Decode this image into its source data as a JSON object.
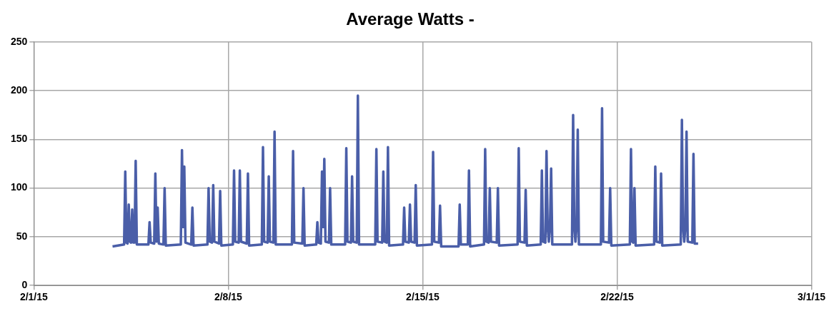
{
  "chart_data": {
    "type": "line",
    "title": "Average Watts -",
    "x": [
      "--02-03T20:00",
      "--02-04T06:00",
      "--02-04T07:00",
      "--02-04T08:00",
      "--02-04T09:00",
      "--02-04T10:00",
      "--02-04T11:00",
      "--02-04T12:00",
      "--02-04T13:00",
      "--02-04T14:00",
      "--02-04T15:00",
      "--02-04T16:00",
      "--02-04T17:00",
      "--02-05T03:00",
      "--02-05T04:00",
      "--02-05T05:00",
      "--02-05T08:00",
      "--02-05T09:00",
      "--02-05T10:00",
      "--02-05T11:00",
      "--02-05T12:00",
      "--02-05T16:00",
      "--02-05T17:00",
      "--02-05T18:00",
      "--02-06T07:00",
      "--02-06T08:00",
      "--02-06T09:00",
      "--02-06T10:00",
      "--02-06T11:00",
      "--02-06T16:00",
      "--02-06T17:00",
      "--02-06T18:00",
      "--02-07T06:00",
      "--02-07T07:00",
      "--02-07T08:00",
      "--02-07T10:00",
      "--02-07T11:00",
      "--02-07T12:00",
      "--02-07T16:00",
      "--02-07T17:00",
      "--02-07T18:00",
      "--02-08T04:00",
      "--02-08T05:00",
      "--02-08T06:00",
      "--02-08T09:00",
      "--02-08T10:00",
      "--02-08T11:00",
      "--02-08T16:00",
      "--02-08T17:00",
      "--02-08T18:00",
      "--02-09T05:00",
      "--02-09T06:00",
      "--02-09T07:00",
      "--02-09T10:00",
      "--02-09T11:00",
      "--02-09T12:00",
      "--02-09T15:00",
      "--02-09T16:00",
      "--02-09T17:00",
      "--02-10T07:00",
      "--02-10T08:00",
      "--02-10T09:00",
      "--02-10T16:00",
      "--02-10T17:00",
      "--02-10T18:00",
      "--02-11T04:00",
      "--02-11T05:00",
      "--02-11T06:00",
      "--02-11T08:00",
      "--02-11T09:00",
      "--02-11T10:00",
      "--02-11T11:00",
      "--02-11T12:00",
      "--02-11T15:00",
      "--02-11T16:00",
      "--02-11T17:00",
      "--02-12T05:00",
      "--02-12T06:00",
      "--02-12T07:00",
      "--02-12T10:00",
      "--02-12T11:00",
      "--02-12T12:00",
      "--02-12T15:00",
      "--02-12T16:00",
      "--02-12T17:00",
      "--02-13T07:00",
      "--02-13T08:00",
      "--02-13T09:00",
      "--02-13T13:00",
      "--02-13T14:00",
      "--02-13T15:00",
      "--02-13T17:00",
      "--02-13T18:00",
      "--02-13T19:00",
      "--02-14T07:00",
      "--02-14T08:00",
      "--02-14T09:00",
      "--02-14T12:00",
      "--02-14T13:00",
      "--02-14T14:00",
      "--02-14T17:00",
      "--02-14T18:00",
      "--02-14T19:00",
      "--02-15T08:00",
      "--02-15T09:00",
      "--02-15T10:00",
      "--02-15T14:00",
      "--02-15T15:00",
      "--02-15T16:00",
      "--02-16T07:00",
      "--02-16T08:00",
      "--02-16T09:00",
      "--02-16T15:00",
      "--02-16T16:00",
      "--02-16T17:00",
      "--02-17T05:00",
      "--02-17T06:00",
      "--02-17T07:00",
      "--02-17T09:00",
      "--02-17T10:00",
      "--02-17T11:00",
      "--02-17T16:00",
      "--02-17T17:00",
      "--02-17T18:00",
      "--02-18T10:00",
      "--02-18T11:00",
      "--02-18T12:00",
      "--02-18T16:00",
      "--02-18T17:00",
      "--02-18T18:00",
      "--02-19T06:00",
      "--02-19T07:00",
      "--02-19T08:00",
      "--02-19T10:00",
      "--02-19T11:00",
      "--02-19T12:00",
      "--02-19T13:00",
      "--02-19T14:00",
      "--02-19T15:00",
      "--02-19T16:00",
      "--02-20T09:00",
      "--02-20T10:00",
      "--02-20T11:00",
      "--02-20T12:00",
      "--02-20T13:00",
      "--02-20T14:00",
      "--02-20T15:00",
      "--02-21T10:00",
      "--02-21T11:00",
      "--02-21T12:00",
      "--02-21T17:00",
      "--02-21T18:00",
      "--02-21T19:00",
      "--02-22T11:00",
      "--02-22T12:00",
      "--02-22T13:00",
      "--02-22T14:00",
      "--02-22T15:00",
      "--02-22T16:00",
      "--02-23T08:00",
      "--02-23T09:00",
      "--02-23T10:00",
      "--02-23T13:00",
      "--02-23T14:00",
      "--02-23T15:00",
      "--02-24T07:00",
      "--02-24T08:00",
      "--02-24T09:00",
      "--02-24T10:00",
      "--02-24T11:00",
      "--02-24T12:00",
      "--02-24T13:00",
      "--02-24T17:00",
      "--02-24T18:00",
      "--02-24T19:00",
      "--02-24T22:00"
    ],
    "series": [
      {
        "color": "#4a5ea8",
        "values": [
          40,
          42,
          117,
          44,
          43,
          83,
          45,
          44,
          78,
          44,
          44,
          128,
          42,
          42,
          65,
          44,
          43,
          115,
          45,
          80,
          43,
          42,
          100,
          41,
          42,
          139,
          60,
          122,
          44,
          42,
          80,
          41,
          42,
          100,
          45,
          44,
          103,
          45,
          43,
          97,
          41,
          42,
          118,
          45,
          44,
          118,
          45,
          43,
          115,
          41,
          42,
          142,
          45,
          44,
          112,
          45,
          44,
          158,
          42,
          42,
          138,
          44,
          43,
          100,
          41,
          42,
          65,
          44,
          43,
          117,
          60,
          130,
          45,
          44,
          100,
          42,
          42,
          141,
          45,
          44,
          112,
          45,
          44,
          195,
          42,
          42,
          140,
          45,
          44,
          117,
          45,
          44,
          142,
          41,
          42,
          80,
          45,
          44,
          83,
          45,
          44,
          103,
          41,
          42,
          137,
          45,
          44,
          82,
          40,
          40,
          83,
          42,
          42,
          118,
          40,
          42,
          140,
          45,
          44,
          100,
          45,
          44,
          100,
          41,
          42,
          141,
          45,
          44,
          98,
          41,
          42,
          118,
          45,
          44,
          138,
          60,
          45,
          60,
          120,
          42,
          42,
          175,
          60,
          45,
          60,
          160,
          42,
          42,
          182,
          45,
          44,
          100,
          41,
          42,
          140,
          45,
          44,
          100,
          41,
          42,
          122,
          45,
          44,
          115,
          41,
          42,
          170,
          60,
          45,
          60,
          158,
          45,
          44,
          135,
          43,
          43
        ]
      }
    ],
    "xlim": [
      "--02-01",
      "--03-01"
    ],
    "xticks": [
      {
        "value": "--02-01",
        "label": "2/1/15"
      },
      {
        "value": "--02-08",
        "label": "2/8/15"
      },
      {
        "value": "--02-15",
        "label": "2/15/15"
      },
      {
        "value": "--02-22",
        "label": "2/22/15"
      },
      {
        "value": "--03-01",
        "label": "3/1/15"
      }
    ],
    "ylim": [
      0,
      250
    ],
    "yticks": [
      0,
      50,
      100,
      150,
      200,
      250
    ],
    "grid": true,
    "legend": false,
    "marker": "none",
    "line_style": "solid"
  }
}
